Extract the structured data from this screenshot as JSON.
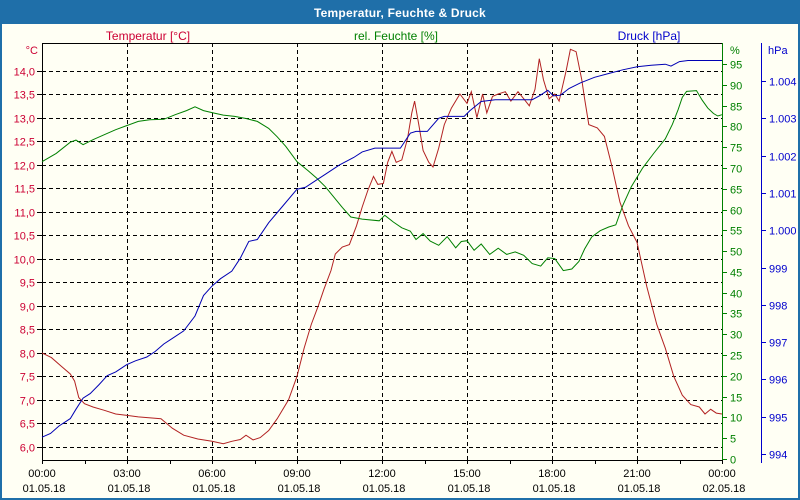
{
  "window": {
    "title": "Temperatur, Feuchte & Druck"
  },
  "legend": {
    "temperature": {
      "label": "Temperatur [°C]",
      "color": "#cc0033"
    },
    "humidity": {
      "label": "rel. Feuchte [%]",
      "color": "#008000"
    },
    "pressure": {
      "label": "Druck [hPa]",
      "color": "#0000cc"
    }
  },
  "chart_data": {
    "type": "line",
    "title": "Temperatur, Feuchte & Druck",
    "grid": {
      "style": "dashed",
      "color": "#000000"
    },
    "x_axis": {
      "range_hours": [
        0,
        24
      ],
      "major_tick_hours": 3,
      "minor_tick_hours": 1.5,
      "tick_times": [
        "00:00",
        "03:00",
        "06:00",
        "09:00",
        "12:00",
        "15:00",
        "18:00",
        "21:00",
        "00:00"
      ],
      "tick_dates": [
        "01.05.18",
        "01.05.18",
        "01.05.18",
        "01.05.18",
        "01.05.18",
        "01.05.18",
        "01.05.18",
        "01.05.18",
        "02.05.18"
      ]
    },
    "y_axes": {
      "temperature": {
        "unit": "°C",
        "side": "left",
        "color": "#cc0033",
        "min": 6,
        "max": 14,
        "tick_values": [
          14,
          13.5,
          13,
          12.5,
          12,
          11.5,
          11,
          10.5,
          10,
          9.5,
          9,
          8.5,
          8,
          7.5,
          7,
          6.5,
          6
        ],
        "tick_labels": [
          "14,0",
          "13,5",
          "13,0",
          "12,5",
          "12,0",
          "11,5",
          "11,0",
          "10,5",
          "10,0",
          "9,5",
          "9,0",
          "8,5",
          "8,0",
          "7,5",
          "7,0",
          "6,5",
          "6,0"
        ]
      },
      "humidity": {
        "unit": "%",
        "side": "right-inner",
        "color": "#008000",
        "min": 0,
        "max": 95,
        "tick_values": [
          95,
          90,
          85,
          80,
          75,
          70,
          65,
          60,
          55,
          50,
          45,
          40,
          35,
          30,
          25,
          20,
          15,
          10,
          5,
          0
        ],
        "tick_labels": [
          "95",
          "90",
          "85",
          "80",
          "75",
          "70",
          "65",
          "60",
          "55",
          "50",
          "45",
          "40",
          "35",
          "30",
          "25",
          "20",
          "15",
          "10",
          "5",
          "0"
        ]
      },
      "pressure": {
        "unit": "hPa",
        "side": "right-outer",
        "color": "#0000cc",
        "min": 994,
        "max": 1004,
        "tick_values": [
          1004,
          1003,
          1002,
          1001,
          1000,
          999,
          998,
          997,
          996,
          995,
          994
        ],
        "tick_labels": [
          "1.004",
          "1.003",
          "1.002",
          "1.001",
          "1.000",
          "999",
          "998",
          "997",
          "996",
          "995",
          "994"
        ]
      }
    },
    "series": [
      {
        "name": "Temperatur",
        "unit": "°C",
        "axis": "temperature",
        "color": "#b22222",
        "points": [
          [
            0,
            8.0
          ],
          [
            0.33,
            7.9
          ],
          [
            0.67,
            7.72
          ],
          [
            1,
            7.55
          ],
          [
            1.15,
            7.4
          ],
          [
            1.3,
            7.05
          ],
          [
            1.5,
            6.92
          ],
          [
            1.8,
            6.85
          ],
          [
            2.2,
            6.78
          ],
          [
            2.6,
            6.7
          ],
          [
            3,
            6.67
          ],
          [
            3.4,
            6.64
          ],
          [
            4.2,
            6.6
          ],
          [
            4.6,
            6.4
          ],
          [
            5,
            6.25
          ],
          [
            5.5,
            6.17
          ],
          [
            6,
            6.12
          ],
          [
            6.4,
            6.07
          ],
          [
            6.7,
            6.12
          ],
          [
            7,
            6.16
          ],
          [
            7.2,
            6.25
          ],
          [
            7.45,
            6.15
          ],
          [
            7.7,
            6.2
          ],
          [
            8,
            6.35
          ],
          [
            8.3,
            6.6
          ],
          [
            8.7,
            7.0
          ],
          [
            9,
            7.5
          ],
          [
            9.25,
            8.1
          ],
          [
            9.5,
            8.6
          ],
          [
            9.75,
            9.0
          ],
          [
            9.95,
            9.35
          ],
          [
            10.2,
            9.75
          ],
          [
            10.35,
            10.1
          ],
          [
            10.6,
            10.25
          ],
          [
            10.85,
            10.3
          ],
          [
            11.1,
            10.7
          ],
          [
            11.3,
            11.1
          ],
          [
            11.5,
            11.45
          ],
          [
            11.7,
            11.75
          ],
          [
            11.85,
            11.58
          ],
          [
            12.05,
            11.6
          ],
          [
            12.2,
            12.05
          ],
          [
            12.35,
            12.28
          ],
          [
            12.5,
            12.05
          ],
          [
            12.7,
            12.1
          ],
          [
            12.9,
            12.55
          ],
          [
            13.05,
            13.1
          ],
          [
            13.15,
            13.35
          ],
          [
            13.3,
            12.85
          ],
          [
            13.45,
            12.3
          ],
          [
            13.65,
            12.05
          ],
          [
            13.8,
            11.95
          ],
          [
            14,
            12.35
          ],
          [
            14.2,
            12.85
          ],
          [
            14.45,
            13.2
          ],
          [
            14.75,
            13.5
          ],
          [
            15,
            13.3
          ],
          [
            15.15,
            13.55
          ],
          [
            15.35,
            13.0
          ],
          [
            15.55,
            13.5
          ],
          [
            15.7,
            13.1
          ],
          [
            15.9,
            13.45
          ],
          [
            16.1,
            13.5
          ],
          [
            16.35,
            13.55
          ],
          [
            16.55,
            13.35
          ],
          [
            16.8,
            13.55
          ],
          [
            17,
            13.4
          ],
          [
            17.2,
            13.25
          ],
          [
            17.4,
            13.6
          ],
          [
            17.55,
            14.25
          ],
          [
            17.7,
            13.8
          ],
          [
            17.9,
            13.4
          ],
          [
            18.1,
            13.5
          ],
          [
            18.25,
            13.35
          ],
          [
            18.5,
            14.0
          ],
          [
            18.65,
            14.45
          ],
          [
            18.85,
            14.4
          ],
          [
            19.05,
            13.8
          ],
          [
            19.15,
            13.4
          ],
          [
            19.3,
            12.85
          ],
          [
            19.6,
            12.78
          ],
          [
            19.85,
            12.6
          ],
          [
            20.1,
            12.0
          ],
          [
            20.4,
            11.2
          ],
          [
            20.7,
            10.7
          ],
          [
            21,
            10.35
          ],
          [
            21.35,
            9.4
          ],
          [
            21.7,
            8.6
          ],
          [
            22,
            8.1
          ],
          [
            22.3,
            7.5
          ],
          [
            22.6,
            7.1
          ],
          [
            22.9,
            6.9
          ],
          [
            23.2,
            6.85
          ],
          [
            23.4,
            6.7
          ],
          [
            23.6,
            6.8
          ],
          [
            23.8,
            6.72
          ],
          [
            24,
            6.7
          ]
        ]
      },
      {
        "name": "rel. Feuchte",
        "unit": "%",
        "axis": "humidity",
        "color": "#008000",
        "points": [
          [
            0,
            71.5
          ],
          [
            0.5,
            73.5
          ],
          [
            1,
            76.2
          ],
          [
            1.2,
            76.7
          ],
          [
            1.45,
            75.6
          ],
          [
            1.8,
            76.8
          ],
          [
            2.2,
            78
          ],
          [
            2.6,
            79.2
          ],
          [
            3,
            80.2
          ],
          [
            3.4,
            81.2
          ],
          [
            3.8,
            81.6
          ],
          [
            4.3,
            81.7
          ],
          [
            4.7,
            82.8
          ],
          [
            5.1,
            83.8
          ],
          [
            5.4,
            84.7
          ],
          [
            5.7,
            83.8
          ],
          [
            6,
            83.3
          ],
          [
            6.4,
            82.7
          ],
          [
            6.8,
            82.4
          ],
          [
            7.2,
            81.9
          ],
          [
            7.6,
            81.2
          ],
          [
            8,
            79.5
          ],
          [
            8.3,
            77.5
          ],
          [
            8.6,
            75.2
          ],
          [
            9,
            71.5
          ],
          [
            9.4,
            69.3
          ],
          [
            9.7,
            67.5
          ],
          [
            10,
            65.5
          ],
          [
            10.3,
            63
          ],
          [
            10.6,
            60.5
          ],
          [
            10.9,
            58.2
          ],
          [
            11.3,
            57.7
          ],
          [
            11.9,
            57.3
          ],
          [
            12.1,
            58.6
          ],
          [
            12.4,
            57
          ],
          [
            12.7,
            55.6
          ],
          [
            13,
            54.8
          ],
          [
            13.2,
            52.8
          ],
          [
            13.45,
            54.2
          ],
          [
            13.7,
            52.4
          ],
          [
            14,
            51.4
          ],
          [
            14.3,
            53.5
          ],
          [
            14.6,
            50.8
          ],
          [
            14.8,
            52.3
          ],
          [
            15,
            52.5
          ],
          [
            15.25,
            50.2
          ],
          [
            15.5,
            51.7
          ],
          [
            15.8,
            49.2
          ],
          [
            16.1,
            50.7
          ],
          [
            16.4,
            49.2
          ],
          [
            16.7,
            49.8
          ],
          [
            17,
            49
          ],
          [
            17.3,
            47
          ],
          [
            17.6,
            46.4
          ],
          [
            17.85,
            48.4
          ],
          [
            18.1,
            48.2
          ],
          [
            18.4,
            45.3
          ],
          [
            18.7,
            45.7
          ],
          [
            18.95,
            47.5
          ],
          [
            19.15,
            50.5
          ],
          [
            19.4,
            53.4
          ],
          [
            19.7,
            54.9
          ],
          [
            20,
            55.8
          ],
          [
            20.25,
            56.3
          ],
          [
            20.5,
            61
          ],
          [
            20.8,
            65.5
          ],
          [
            21.2,
            70
          ],
          [
            21.6,
            73.6
          ],
          [
            22,
            77
          ],
          [
            22.25,
            80.5
          ],
          [
            22.45,
            84
          ],
          [
            22.6,
            87
          ],
          [
            22.75,
            88.4
          ],
          [
            23.1,
            88.6
          ],
          [
            23.3,
            86.3
          ],
          [
            23.5,
            84.4
          ],
          [
            23.7,
            83.1
          ],
          [
            23.85,
            82.5
          ],
          [
            24,
            82.8
          ]
        ]
      },
      {
        "name": "Druck",
        "unit": "hPa",
        "axis": "pressure",
        "color": "#0000b4",
        "points": [
          [
            0,
            994.45
          ],
          [
            0.3,
            994.55
          ],
          [
            0.6,
            994.75
          ],
          [
            1,
            994.95
          ],
          [
            1.2,
            995.2
          ],
          [
            1.45,
            995.5
          ],
          [
            1.7,
            995.62
          ],
          [
            2,
            995.85
          ],
          [
            2.3,
            996.1
          ],
          [
            2.6,
            996.2
          ],
          [
            3,
            996.4
          ],
          [
            3.3,
            996.5
          ],
          [
            3.7,
            996.6
          ],
          [
            4,
            996.75
          ],
          [
            4.3,
            996.95
          ],
          [
            4.6,
            997.1
          ],
          [
            5,
            997.3
          ],
          [
            5.4,
            997.7
          ],
          [
            5.7,
            998.25
          ],
          [
            6,
            998.5
          ],
          [
            6.3,
            998.7
          ],
          [
            6.7,
            998.9
          ],
          [
            7,
            999.25
          ],
          [
            7.3,
            999.7
          ],
          [
            7.6,
            999.75
          ],
          [
            8,
            1000.2
          ],
          [
            8.5,
            1000.65
          ],
          [
            9,
            1001.1
          ],
          [
            9.3,
            1001.15
          ],
          [
            9.6,
            1001.3
          ],
          [
            10,
            1001.5
          ],
          [
            10.5,
            1001.75
          ],
          [
            11,
            1001.95
          ],
          [
            11.3,
            1002.1
          ],
          [
            11.75,
            1002.2
          ],
          [
            12.65,
            1002.2
          ],
          [
            13,
            1002.6
          ],
          [
            13.2,
            1002.65
          ],
          [
            13.6,
            1002.65
          ],
          [
            14,
            1003.0
          ],
          [
            14.2,
            1003.05
          ],
          [
            14.9,
            1003.05
          ],
          [
            15.1,
            1003.2
          ],
          [
            15.5,
            1003.45
          ],
          [
            16,
            1003.5
          ],
          [
            17.3,
            1003.5
          ],
          [
            17.55,
            1003.6
          ],
          [
            17.85,
            1003.75
          ],
          [
            18.05,
            1003.6
          ],
          [
            18.3,
            1003.62
          ],
          [
            18.6,
            1003.8
          ],
          [
            19,
            1003.95
          ],
          [
            19.5,
            1004.1
          ],
          [
            20,
            1004.2
          ],
          [
            20.5,
            1004.3
          ],
          [
            21,
            1004.38
          ],
          [
            21.5,
            1004.42
          ],
          [
            22,
            1004.45
          ],
          [
            22.2,
            1004.4
          ],
          [
            22.5,
            1004.52
          ],
          [
            22.8,
            1004.55
          ],
          [
            24,
            1004.55
          ]
        ]
      }
    ]
  }
}
